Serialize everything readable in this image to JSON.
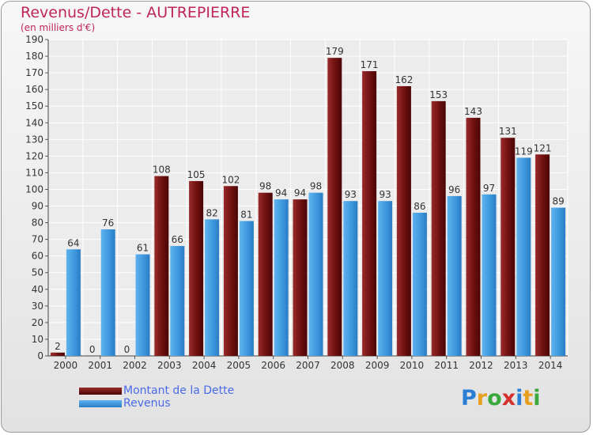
{
  "header": {
    "title": "Revenus/Dette - AUTREPIERRE",
    "subtitle": "(en milliers d'€)"
  },
  "logo": {
    "letters": [
      "P",
      "r",
      "o",
      "x",
      "i",
      "t",
      "i"
    ],
    "colors": [
      "#2a7fd4",
      "#e8a020",
      "#3aa83a",
      "#d43030",
      "#2a7fd4",
      "#e8a020",
      "#3aa83a"
    ]
  },
  "chart_data": {
    "type": "bar",
    "categories": [
      "2000",
      "2001",
      "2002",
      "2003",
      "2004",
      "2005",
      "2006",
      "2007",
      "2008",
      "2009",
      "2010",
      "2011",
      "2012",
      "2013",
      "2014"
    ],
    "series": [
      {
        "name": "Montant de la Dette",
        "color": "#7a1a1a",
        "values": [
          2,
          0,
          0,
          108,
          105,
          102,
          98,
          94,
          179,
          171,
          162,
          153,
          143,
          131,
          121
        ]
      },
      {
        "name": "Revenus",
        "color": "#3c9ae0",
        "values": [
          64,
          76,
          61,
          66,
          82,
          81,
          94,
          98,
          93,
          93,
          86,
          96,
          97,
          119,
          89
        ]
      }
    ],
    "ylim": [
      0,
      190
    ],
    "yticks": [
      0,
      10,
      20,
      30,
      40,
      50,
      60,
      70,
      80,
      90,
      100,
      110,
      120,
      130,
      140,
      150,
      160,
      170,
      180,
      190
    ],
    "grid": true,
    "legend_position": "bottom-left"
  }
}
